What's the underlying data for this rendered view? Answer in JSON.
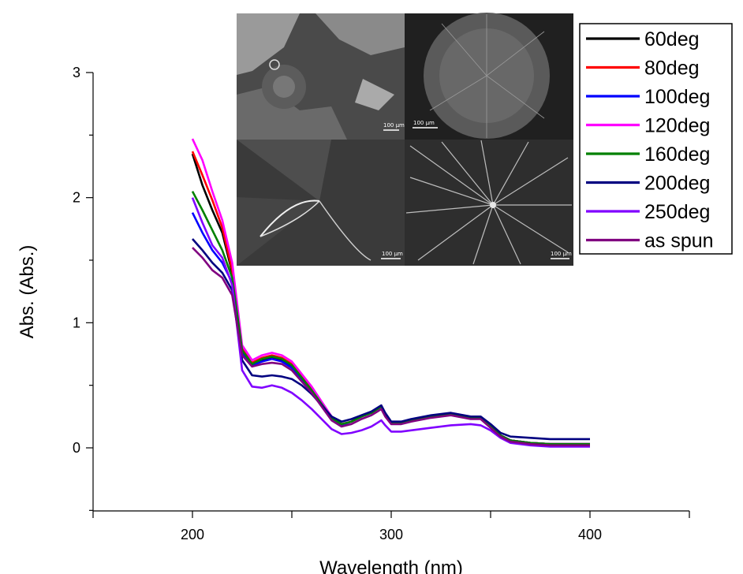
{
  "chart_data": {
    "type": "line",
    "xlabel": "Wavelength (nm)",
    "ylabel": "Abs. (Abs.)",
    "xlim": [
      150,
      450
    ],
    "ylim": [
      -0.5,
      3.0
    ],
    "xticks": [
      200,
      300,
      400
    ],
    "yticks": [
      0,
      1,
      2,
      3
    ],
    "legend_position": "top-right",
    "grid": false,
    "x": [
      200,
      205,
      210,
      215,
      220,
      225,
      230,
      235,
      240,
      245,
      250,
      255,
      260,
      265,
      270,
      275,
      280,
      285,
      290,
      293,
      295,
      297,
      300,
      305,
      310,
      320,
      330,
      340,
      345,
      350,
      355,
      360,
      370,
      380,
      390,
      400
    ],
    "series": [
      {
        "name": "60deg",
        "color": "#000000",
        "values": [
          2.35,
          2.1,
          1.9,
          1.72,
          1.4,
          0.78,
          0.66,
          0.7,
          0.72,
          0.7,
          0.65,
          0.55,
          0.46,
          0.35,
          0.24,
          0.19,
          0.21,
          0.25,
          0.28,
          0.31,
          0.33,
          0.27,
          0.2,
          0.2,
          0.22,
          0.25,
          0.27,
          0.24,
          0.24,
          0.17,
          0.1,
          0.06,
          0.04,
          0.03,
          0.03,
          0.03
        ]
      },
      {
        "name": "80deg",
        "color": "#ff0000",
        "values": [
          2.37,
          2.18,
          1.98,
          1.76,
          1.42,
          0.8,
          0.68,
          0.72,
          0.74,
          0.72,
          0.67,
          0.57,
          0.47,
          0.36,
          0.25,
          0.19,
          0.21,
          0.25,
          0.28,
          0.31,
          0.33,
          0.27,
          0.2,
          0.2,
          0.22,
          0.25,
          0.27,
          0.24,
          0.24,
          0.17,
          0.1,
          0.06,
          0.04,
          0.03,
          0.03,
          0.03
        ]
      },
      {
        "name": "100deg",
        "color": "#0000ff",
        "values": [
          1.88,
          1.72,
          1.58,
          1.48,
          1.32,
          0.76,
          0.66,
          0.69,
          0.71,
          0.69,
          0.64,
          0.55,
          0.45,
          0.35,
          0.24,
          0.18,
          0.21,
          0.25,
          0.28,
          0.31,
          0.33,
          0.27,
          0.2,
          0.2,
          0.22,
          0.25,
          0.27,
          0.24,
          0.24,
          0.17,
          0.1,
          0.06,
          0.04,
          0.03,
          0.03,
          0.03
        ]
      },
      {
        "name": "120deg",
        "color": "#ff00ff",
        "values": [
          2.47,
          2.3,
          2.05,
          1.82,
          1.48,
          0.82,
          0.7,
          0.74,
          0.76,
          0.74,
          0.69,
          0.59,
          0.49,
          0.37,
          0.25,
          0.19,
          0.21,
          0.25,
          0.28,
          0.31,
          0.33,
          0.27,
          0.2,
          0.2,
          0.22,
          0.25,
          0.27,
          0.24,
          0.24,
          0.17,
          0.1,
          0.06,
          0.04,
          0.03,
          0.03,
          0.03
        ]
      },
      {
        "name": "160deg",
        "color": "#008000",
        "values": [
          2.05,
          1.9,
          1.74,
          1.58,
          1.36,
          0.78,
          0.67,
          0.71,
          0.73,
          0.71,
          0.66,
          0.56,
          0.46,
          0.35,
          0.24,
          0.19,
          0.21,
          0.25,
          0.28,
          0.31,
          0.33,
          0.27,
          0.2,
          0.2,
          0.22,
          0.25,
          0.27,
          0.24,
          0.24,
          0.17,
          0.1,
          0.06,
          0.04,
          0.03,
          0.03,
          0.03
        ]
      },
      {
        "name": "200deg",
        "color": "#000080",
        "values": [
          1.67,
          1.58,
          1.48,
          1.4,
          1.26,
          0.7,
          0.58,
          0.57,
          0.58,
          0.57,
          0.55,
          0.5,
          0.43,
          0.34,
          0.25,
          0.21,
          0.23,
          0.26,
          0.29,
          0.32,
          0.34,
          0.28,
          0.21,
          0.21,
          0.23,
          0.26,
          0.28,
          0.25,
          0.25,
          0.19,
          0.12,
          0.09,
          0.08,
          0.07,
          0.07,
          0.07
        ]
      },
      {
        "name": "250deg",
        "color": "#8000ff",
        "values": [
          2.0,
          1.8,
          1.62,
          1.52,
          1.3,
          0.62,
          0.49,
          0.48,
          0.5,
          0.48,
          0.44,
          0.38,
          0.31,
          0.23,
          0.15,
          0.11,
          0.12,
          0.14,
          0.17,
          0.2,
          0.22,
          0.18,
          0.13,
          0.13,
          0.14,
          0.16,
          0.18,
          0.19,
          0.18,
          0.14,
          0.08,
          0.04,
          0.02,
          0.01,
          0.01,
          0.01
        ]
      },
      {
        "name": "as spun",
        "color": "#800080",
        "values": [
          1.6,
          1.52,
          1.42,
          1.36,
          1.22,
          0.74,
          0.65,
          0.67,
          0.68,
          0.67,
          0.62,
          0.53,
          0.44,
          0.33,
          0.22,
          0.17,
          0.19,
          0.23,
          0.26,
          0.29,
          0.31,
          0.25,
          0.19,
          0.19,
          0.21,
          0.24,
          0.26,
          0.23,
          0.23,
          0.16,
          0.09,
          0.05,
          0.03,
          0.02,
          0.02,
          0.02
        ]
      }
    ]
  },
  "inset": {
    "panels": [
      {
        "scale_label": "100 µm"
      },
      {
        "scale_label": "100 µm"
      },
      {
        "scale_label": "100 µm"
      },
      {
        "scale_label": "100 µm"
      }
    ]
  }
}
